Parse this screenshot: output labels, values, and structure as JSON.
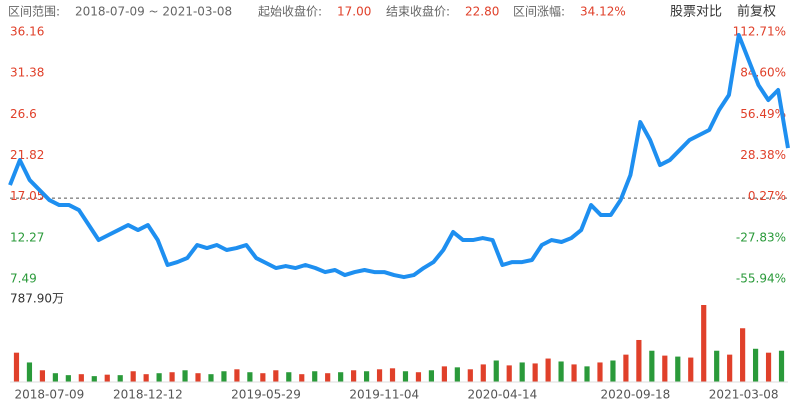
{
  "header": {
    "range_label": "区间范围:",
    "range": "2018-07-09 ~ 2021-03-08",
    "start_label": "起始收盘价:",
    "start": "17.00",
    "end_label": "结束收盘价:",
    "end": "22.80",
    "change_label": "区间涨幅:",
    "change": "34.12%",
    "buttons": [
      "股票对比",
      "前复权"
    ]
  },
  "chart_data": {
    "type": "line",
    "baseline": 17.0,
    "xlim": [
      0,
      79
    ],
    "xticks": [
      {
        "value": 4,
        "label": "2018-07-09"
      },
      {
        "value": 14,
        "label": "2018-12-12"
      },
      {
        "value": 26,
        "label": "2019-05-29"
      },
      {
        "value": 38,
        "label": "2019-11-04"
      },
      {
        "value": 50,
        "label": "2020-04-14"
      },
      {
        "value": 63.5,
        "label": "2020-09-18"
      },
      {
        "value": 74.5,
        "label": "2021-03-08"
      }
    ],
    "ylim": [
      7.49,
      36.16
    ],
    "yticks": [
      7.49,
      12.27,
      17.05,
      21.82,
      26.6,
      31.38,
      36.16
    ],
    "y2lim": [
      -55.94,
      112.71
    ],
    "y2ticks": [
      {
        "value": -55.94,
        "label": "-55.94%"
      },
      {
        "value": -27.83,
        "label": "-27.83%"
      },
      {
        "value": 0.27,
        "label": "0.27%"
      },
      {
        "value": 28.38,
        "label": "28.38%"
      },
      {
        "value": 56.49,
        "label": "56.49%"
      },
      {
        "value": 84.6,
        "label": "84.60%"
      },
      {
        "value": 112.71,
        "label": "112.71%"
      }
    ],
    "up_color": "#e0402a",
    "down_color": "#2a9a3a",
    "series": [
      {
        "color": "#1e8ff0",
        "values": [
          18.51,
          21.41,
          19.09,
          17.93,
          16.77,
          16.19,
          16.19,
          15.61,
          13.87,
          12.13,
          12.71,
          13.29,
          13.87,
          13.29,
          13.87,
          12.13,
          9.23,
          9.57,
          10.04,
          11.55,
          11.2,
          11.55,
          10.97,
          11.2,
          11.55,
          10.04,
          9.46,
          8.88,
          9.11,
          8.88,
          9.23,
          8.88,
          8.41,
          8.65,
          8.06,
          8.41,
          8.65,
          8.41,
          8.41,
          8.06,
          7.83,
          8.06,
          8.88,
          9.57,
          10.97,
          13.06,
          12.13,
          12.13,
          12.36,
          12.13,
          9.23,
          9.57,
          9.57,
          9.81,
          11.55,
          12.13,
          11.9,
          12.36,
          13.29,
          16.19,
          15.03,
          15.03,
          16.77,
          19.67,
          25.82,
          23.74,
          20.83,
          21.41,
          22.57,
          23.74,
          24.32,
          24.9,
          27.22,
          28.96,
          35.93,
          33.03,
          30.12,
          28.38,
          29.54,
          22.8
        ]
      }
    ],
    "volume": {
      "ylim": [
        0,
        787.9
      ],
      "ticks": [
        {
          "value": 787.9,
          "label": "787.90万"
        }
      ],
      "values": [
        300,
        200,
        120,
        90,
        70,
        80,
        60,
        75,
        70,
        110,
        80,
        90,
        100,
        120,
        90,
        80,
        110,
        130,
        100,
        90,
        120,
        100,
        80,
        110,
        90,
        100,
        120,
        110,
        130,
        140,
        110,
        100,
        120,
        160,
        150,
        130,
        180,
        220,
        170,
        200,
        190,
        240,
        210,
        180,
        160,
        200,
        220,
        280,
        430,
        320,
        270,
        260,
        250,
        787.9,
        320,
        280,
        550,
        340,
        300,
        320
      ],
      "colors": [
        "#e0402a",
        "#2a9a3a",
        "#e0402a",
        "#2a9a3a",
        "#2a9a3a",
        "#e0402a",
        "#2a9a3a",
        "#e0402a",
        "#2a9a3a",
        "#e0402a",
        "#e0402a",
        "#2a9a3a",
        "#e0402a",
        "#2a9a3a",
        "#e0402a",
        "#2a9a3a",
        "#2a9a3a",
        "#e0402a",
        "#2a9a3a",
        "#e0402a",
        "#e0402a",
        "#2a9a3a",
        "#e0402a",
        "#2a9a3a",
        "#e0402a",
        "#2a9a3a",
        "#e0402a",
        "#2a9a3a",
        "#e0402a",
        "#e0402a",
        "#2a9a3a",
        "#e0402a",
        "#2a9a3a",
        "#e0402a",
        "#2a9a3a",
        "#e0402a",
        "#e0402a",
        "#2a9a3a",
        "#e0402a",
        "#2a9a3a",
        "#e0402a",
        "#e0402a",
        "#2a9a3a",
        "#e0402a",
        "#2a9a3a",
        "#e0402a",
        "#2a9a3a",
        "#e0402a",
        "#e0402a",
        "#2a9a3a",
        "#e0402a",
        "#2a9a3a",
        "#e0402a",
        "#e0402a",
        "#2a9a3a",
        "#e0402a",
        "#e0402a",
        "#2a9a3a",
        "#e0402a",
        "#2a9a3a"
      ]
    }
  }
}
